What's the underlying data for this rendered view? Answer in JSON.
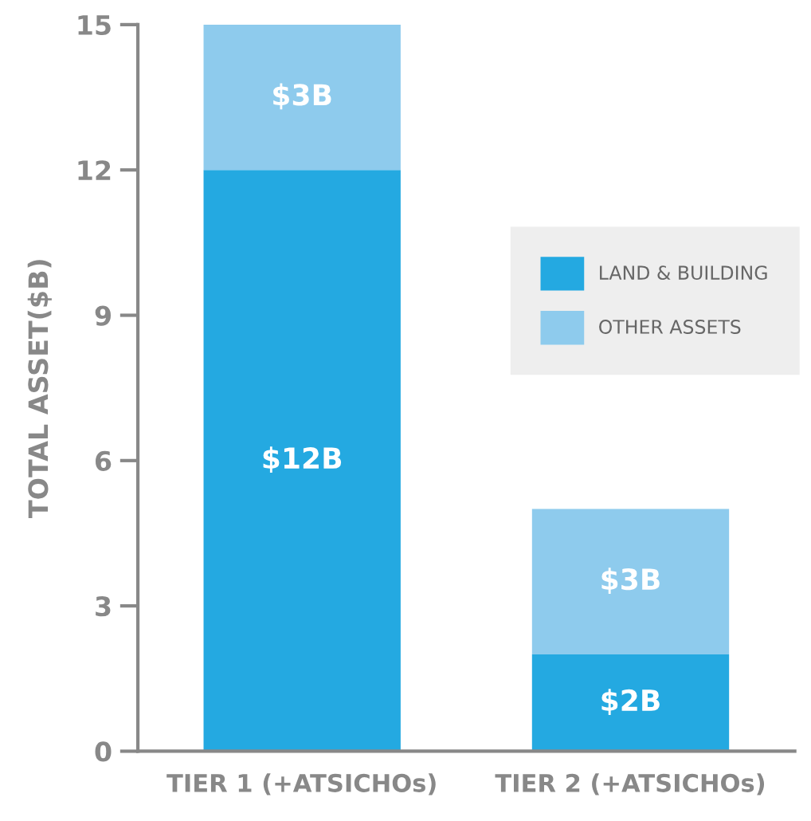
{
  "chart_data": {
    "type": "bar",
    "stacked": true,
    "ylabel": "TOTAL ASSET($B)",
    "categories": [
      "TIER 1 (+ATSICHOs)",
      "TIER 2 (+ATSICHOs)"
    ],
    "series": [
      {
        "name": "LAND & BUILDING",
        "color": "#24a9e1",
        "values": [
          12,
          2
        ],
        "value_labels": [
          "$12B",
          "$2B"
        ]
      },
      {
        "name": "OTHER ASSETS",
        "color": "#8ecbed",
        "values": [
          3,
          3
        ],
        "value_labels": [
          "$3B",
          "$3B"
        ]
      }
    ],
    "ylim": [
      0,
      15
    ],
    "yticks": [
      0,
      3,
      6,
      9,
      12,
      15
    ],
    "grid": false,
    "legend": "right"
  }
}
